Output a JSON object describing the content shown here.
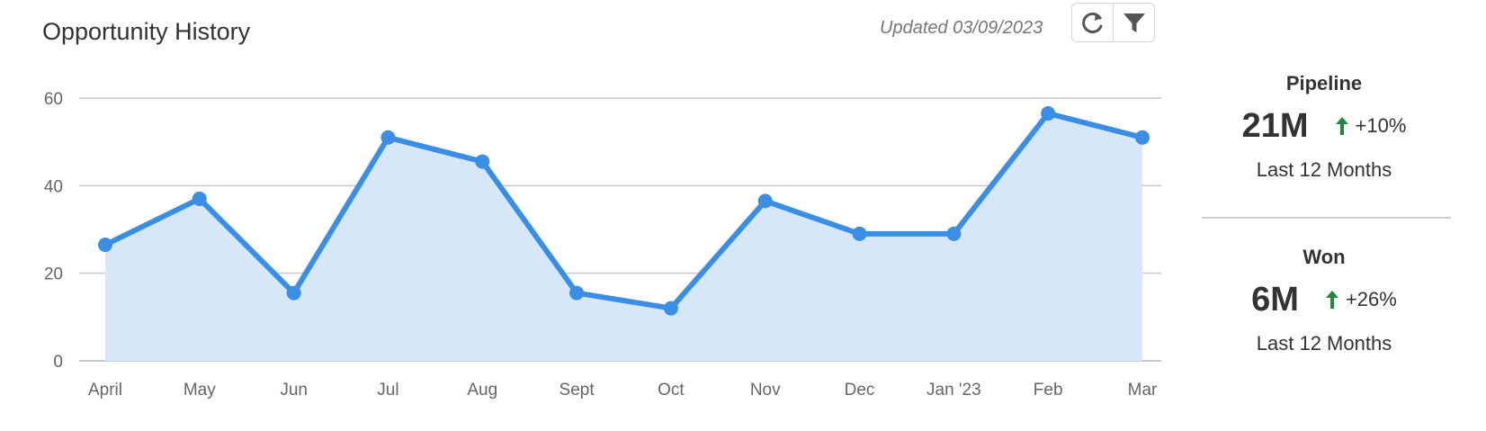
{
  "header": {
    "title": "Opportunity History",
    "updated": "Updated 03/09/2023"
  },
  "toolbar": {
    "icons": [
      "refresh-icon",
      "filter-icon"
    ]
  },
  "chart_data": {
    "type": "area",
    "categories": [
      "April",
      "May",
      "Jun",
      "Jul",
      "Aug",
      "Sept",
      "Oct",
      "Nov",
      "Dec",
      "Jan '23",
      "Feb",
      "Mar"
    ],
    "series": [
      {
        "values": [
          26.5,
          37,
          15.5,
          51,
          45.5,
          15.5,
          12,
          36.5,
          29,
          29,
          56.5,
          51
        ]
      }
    ],
    "yticks": [
      0,
      20,
      40,
      60
    ],
    "ylim": [
      0,
      60
    ],
    "grid": true,
    "colors": {
      "line": "#3a8ee6",
      "fill": "#d6e7f8",
      "grid": "#c4c9d0",
      "axis": "#c4c9d0"
    }
  },
  "kpis": [
    {
      "label": "Pipeline",
      "value": "21M",
      "change": "+10%",
      "period": "Last 12 Months",
      "trend": "up"
    },
    {
      "label": "Won",
      "value": "6M",
      "change": "+26%",
      "period": "Last 12 Months",
      "trend": "up"
    }
  ],
  "colors": {
    "trend_up": "#1e8a3e"
  }
}
